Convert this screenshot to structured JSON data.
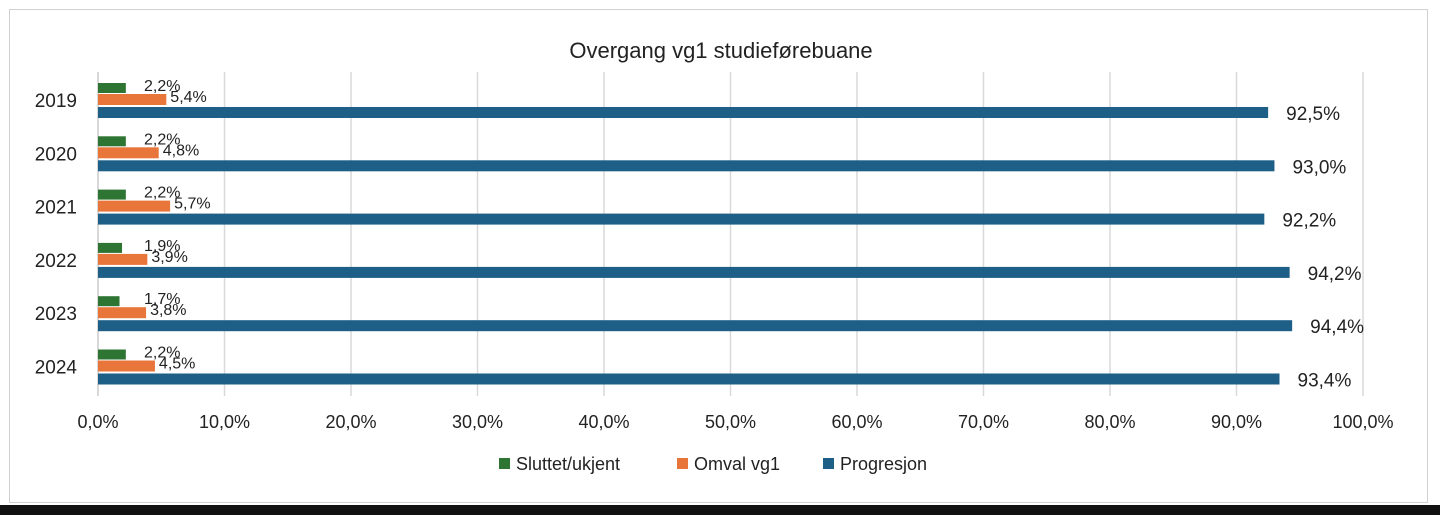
{
  "chart_data": {
    "type": "bar",
    "orientation": "horizontal",
    "title": "Overgang vg1 studieførebuane",
    "categories": [
      "2019",
      "2020",
      "2021",
      "2022",
      "2023",
      "2024"
    ],
    "series": [
      {
        "name": "Sluttet/ukjent",
        "color": "#2e7433",
        "values": [
          2.2,
          2.2,
          2.2,
          1.9,
          1.7,
          2.2
        ],
        "labels": [
          "2,2%",
          "2,2%",
          "2,2%",
          "1,9%",
          "1,7%",
          "2,2%"
        ]
      },
      {
        "name": "Omval vg1",
        "color": "#e8763a",
        "values": [
          5.4,
          4.8,
          5.7,
          3.9,
          3.8,
          4.5
        ],
        "labels": [
          "5,4%",
          "4,8%",
          "5,7%",
          "3,9%",
          "3,8%",
          "4,5%"
        ]
      },
      {
        "name": "Progresjon",
        "color": "#1d5f87",
        "values": [
          92.5,
          93.0,
          92.2,
          94.2,
          94.4,
          93.4
        ],
        "labels": [
          "92,5%",
          "93,0%",
          "92,2%",
          "94,2%",
          "94,4%",
          "93,4%"
        ]
      }
    ],
    "xlim": [
      0,
      100
    ],
    "xticks": [
      "0,0%",
      "10,0%",
      "20,0%",
      "30,0%",
      "40,0%",
      "50,0%",
      "60,0%",
      "70,0%",
      "80,0%",
      "90,0%",
      "100,0%"
    ],
    "grid": true,
    "legend_position": "bottom"
  }
}
